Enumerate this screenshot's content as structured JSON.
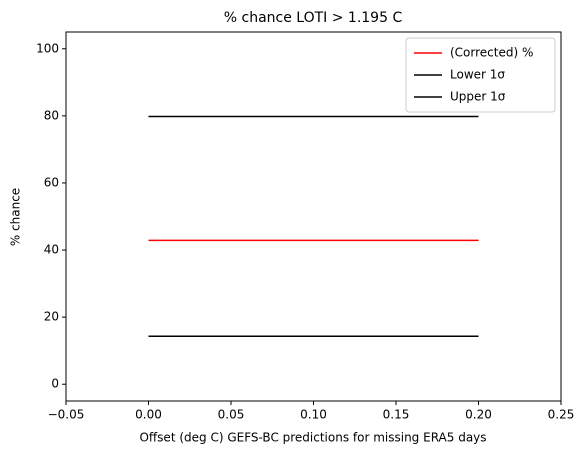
{
  "chart_data": {
    "type": "line",
    "title": "% chance LOTI > 1.195 C",
    "x_label": "Offset (deg C) GEFS-BC predictions for missing ERA5 days",
    "y_label": "% chance",
    "x": [
      0,
      0.05,
      0.1,
      0.15,
      0.2
    ],
    "series": [
      {
        "name": "(Corrected) %",
        "color": "#ff0000",
        "values": [
          42.9,
          42.9,
          42.9,
          42.9,
          42.9
        ]
      },
      {
        "name": "Lower 1σ",
        "color": "#000000",
        "values": [
          14.3,
          14.3,
          14.3,
          14.3,
          14.3
        ]
      },
      {
        "name": "Upper 1σ",
        "color": "#000000",
        "values": [
          79.8,
          79.8,
          79.8,
          79.8,
          79.8
        ]
      }
    ],
    "xlim": [
      -0.05,
      0.25
    ],
    "xticks": [
      {
        "value": -0.05,
        "label": "−0.05"
      },
      {
        "value": 0,
        "label": "0.00"
      },
      0.05,
      {
        "value": 0.1,
        "label": "0.10"
      },
      0.15,
      {
        "value": 0.2,
        "label": "0.20"
      },
      0.25
    ],
    "ylim": [
      -5,
      105
    ],
    "yticks": [
      0,
      20,
      40,
      60,
      80,
      100
    ],
    "legend": "upper right",
    "grid": false
  }
}
